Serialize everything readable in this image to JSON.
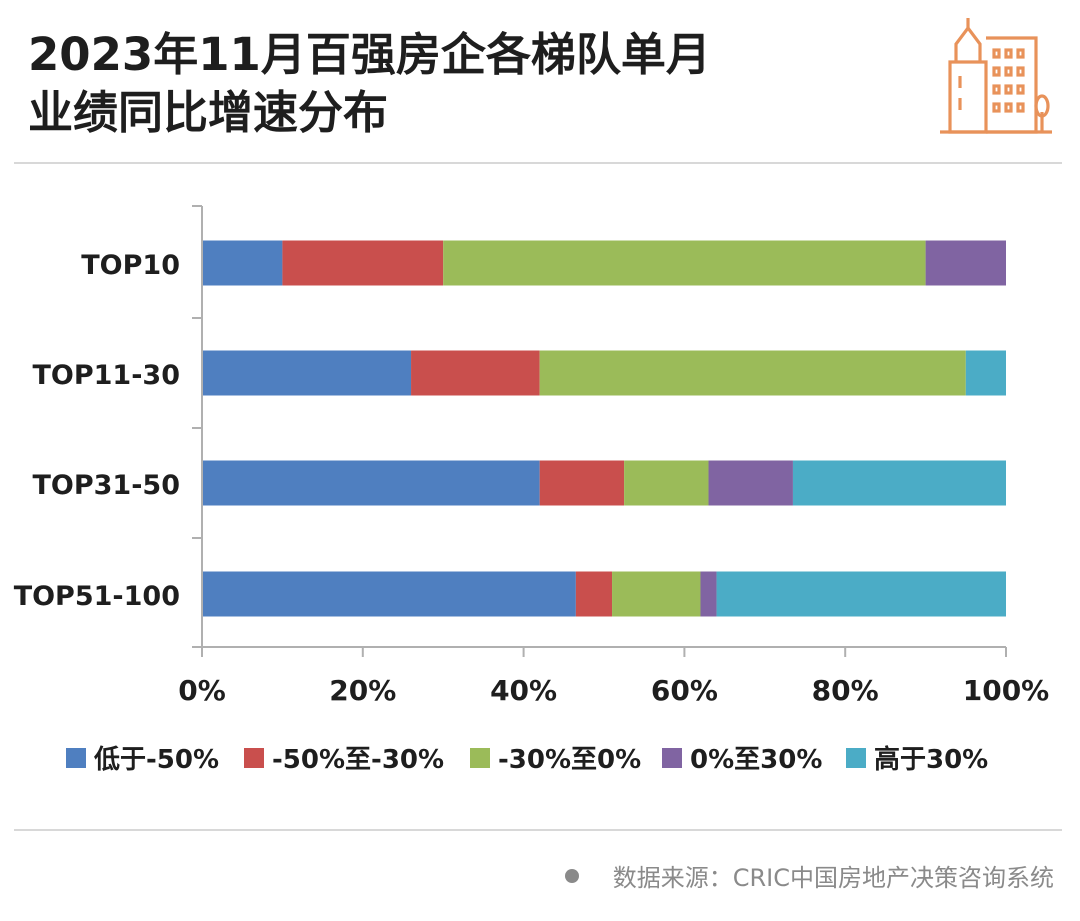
{
  "title_line1": "2023年11月百强房企各梯队单月",
  "title_line2": "业绩同比增速分布",
  "source": "数据来源：CRIC中国房地产决策咨询系统",
  "logo_icon": "buildings-icon",
  "chart_data": {
    "type": "bar",
    "orientation": "horizontal",
    "stacked": "percent",
    "categories": [
      "TOP10",
      "TOP11-30",
      "TOP31-50",
      "TOP51-100"
    ],
    "series": [
      {
        "name": "低于-50%",
        "color": "#4f7fc0",
        "values": [
          10,
          26,
          42,
          46.5
        ]
      },
      {
        "name": "-50%至-30%",
        "color": "#c94f4d",
        "values": [
          20,
          16,
          10.5,
          4.5
        ]
      },
      {
        "name": "-30%至0%",
        "color": "#9bbb59",
        "values": [
          60,
          53,
          10.5,
          11
        ]
      },
      {
        "name": "0%至30%",
        "color": "#8064a2",
        "values": [
          10,
          0,
          10.5,
          2
        ]
      },
      {
        "name": "高于30%",
        "color": "#4bacc6",
        "values": [
          0,
          5,
          26.5,
          36
        ]
      }
    ],
    "xlim": [
      0,
      100
    ],
    "xticks": [
      "0%",
      "20%",
      "40%",
      "60%",
      "80%",
      "100%"
    ],
    "grid": false,
    "legend_position": "bottom"
  }
}
